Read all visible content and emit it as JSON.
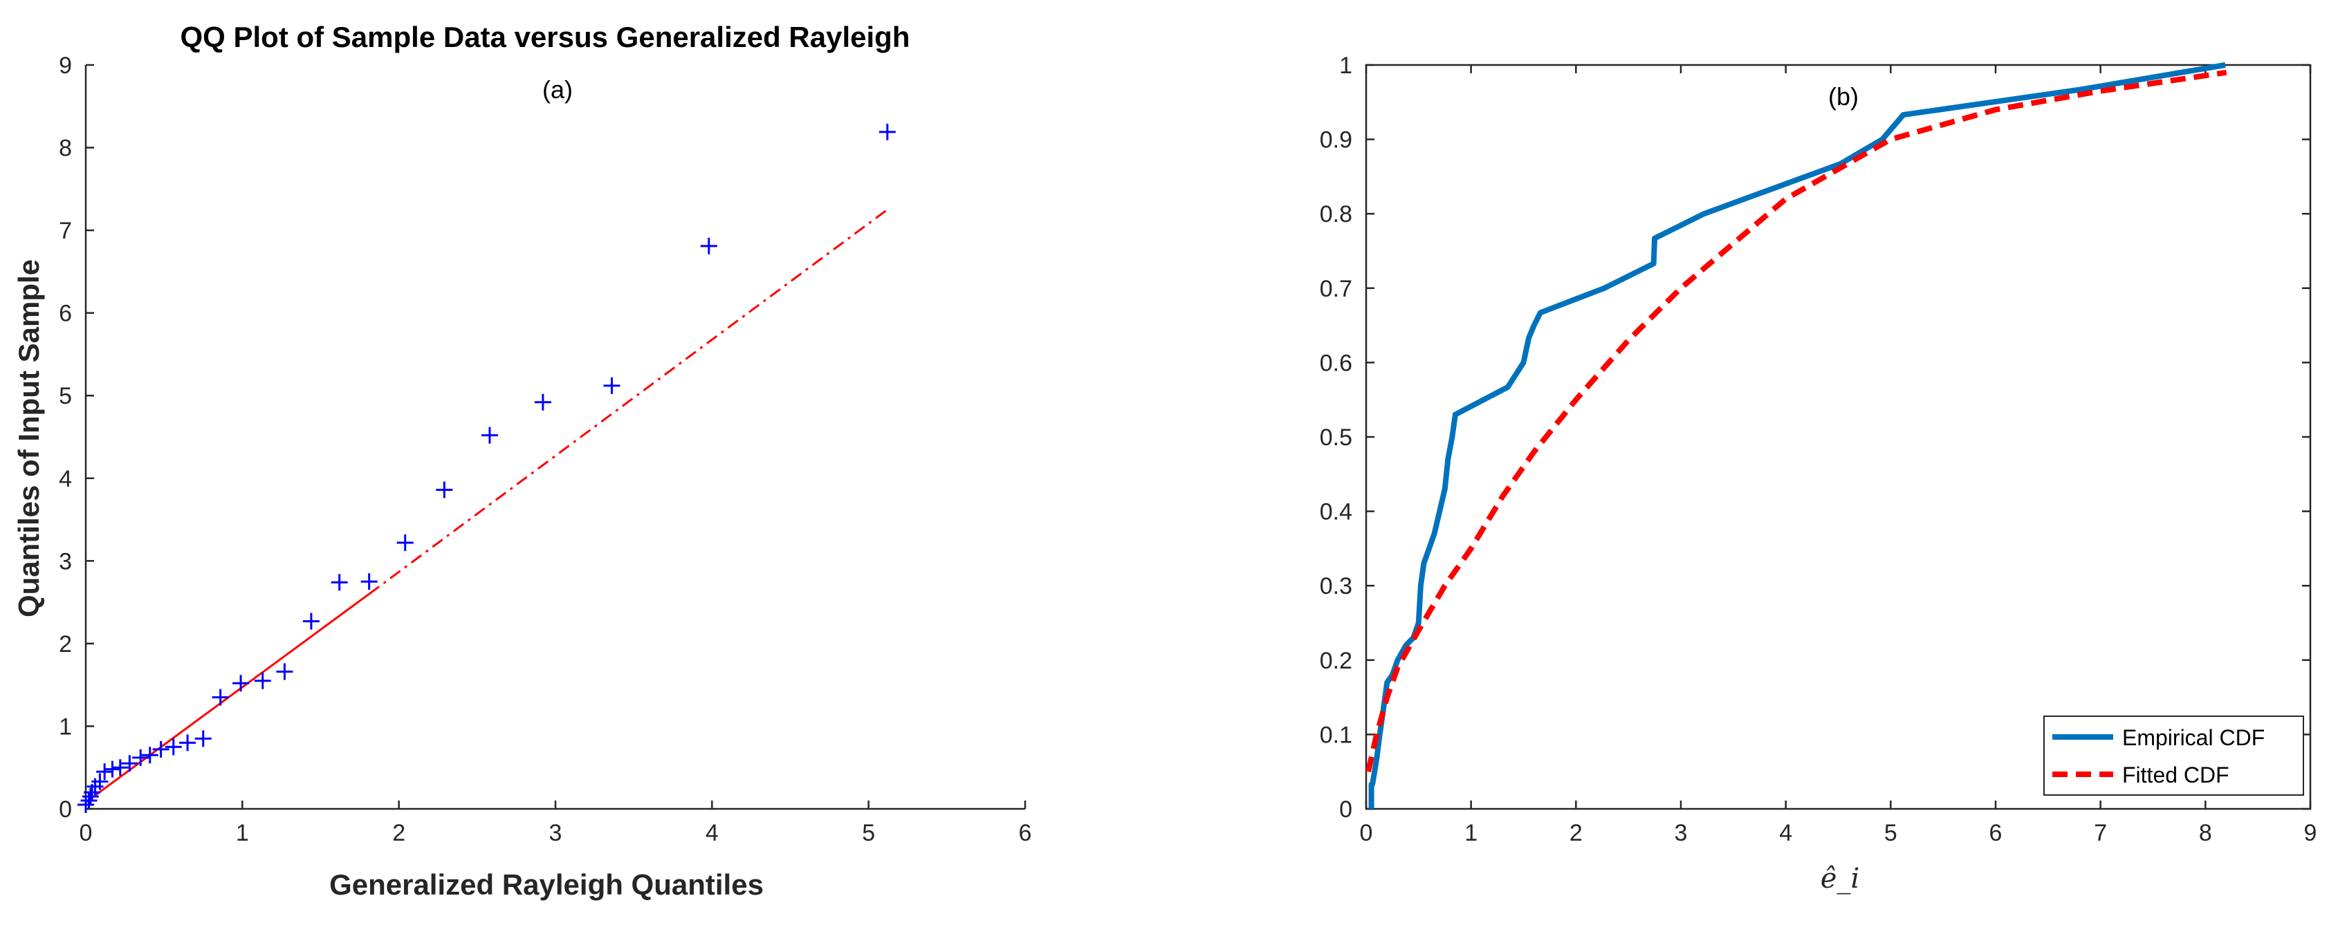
{
  "chart_data": [
    {
      "type": "scatter",
      "title": "QQ Plot of Sample Data versus Generalized Rayleigh",
      "annotation": "(a)",
      "xlabel": "Generalized Rayleigh Quantiles",
      "ylabel": "Quantiles of Input Sample",
      "xlim": [
        0,
        6
      ],
      "ylim": [
        0,
        9
      ],
      "xticks": [
        "0",
        "1",
        "2",
        "3",
        "4",
        "5",
        "6"
      ],
      "yticks": [
        "0",
        "1",
        "2",
        "3",
        "4",
        "5",
        "6",
        "7",
        "8",
        "9"
      ],
      "marker": "+",
      "marker_color": "#0000ff",
      "points": [
        [
          0.0,
          0.05
        ],
        [
          0.02,
          0.1
        ],
        [
          0.03,
          0.15
        ],
        [
          0.04,
          0.2
        ],
        [
          0.06,
          0.27
        ],
        [
          0.09,
          0.33
        ],
        [
          0.12,
          0.45
        ],
        [
          0.17,
          0.48
        ],
        [
          0.22,
          0.5
        ],
        [
          0.28,
          0.55
        ],
        [
          0.35,
          0.62
        ],
        [
          0.41,
          0.65
        ],
        [
          0.48,
          0.72
        ],
        [
          0.56,
          0.75
        ],
        [
          0.65,
          0.8
        ],
        [
          0.75,
          0.85
        ],
        [
          0.86,
          1.35
        ],
        [
          0.99,
          1.52
        ],
        [
          1.13,
          1.55
        ],
        [
          1.27,
          1.66
        ],
        [
          1.44,
          2.27
        ],
        [
          1.62,
          2.74
        ],
        [
          1.81,
          2.75
        ],
        [
          2.04,
          3.22
        ],
        [
          2.29,
          3.86
        ],
        [
          2.58,
          4.52
        ],
        [
          2.92,
          4.92
        ],
        [
          3.36,
          5.12
        ],
        [
          3.98,
          6.81
        ],
        [
          5.12,
          8.19
        ]
      ],
      "reference_line": {
        "color": "#ff0000",
        "solid": [
          [
            0.0,
            0.08
          ],
          [
            1.81,
            2.6
          ]
        ],
        "dashdot": [
          [
            1.81,
            2.6
          ],
          [
            5.12,
            7.25
          ]
        ]
      }
    },
    {
      "type": "line",
      "annotation": "(b)",
      "xlabel": "ê_i",
      "ylabel": "",
      "xlim": [
        0,
        9
      ],
      "ylim": [
        0,
        1
      ],
      "xticks": [
        "0",
        "1",
        "2",
        "3",
        "4",
        "5",
        "6",
        "7",
        "8",
        "9"
      ],
      "yticks": [
        "0",
        "0.1",
        "0.2",
        "0.3",
        "0.4",
        "0.5",
        "0.6",
        "0.7",
        "0.8",
        "0.9",
        "1"
      ],
      "legend_position": "bottom-right",
      "series": [
        {
          "name": "Empirical CDF",
          "color": "#0072bd",
          "style": "solid",
          "x": [
            0.05,
            0.05,
            0.06,
            0.1,
            0.13,
            0.16,
            0.2,
            0.25,
            0.3,
            0.38,
            0.45,
            0.5,
            0.52,
            0.55,
            0.6,
            0.65,
            0.7,
            0.75,
            0.78,
            0.82,
            0.85,
            1.35,
            1.5,
            1.55,
            1.6,
            1.66,
            2.27,
            2.74,
            2.75,
            3.22,
            3.86,
            4.52,
            4.92,
            5.12,
            6.81,
            8.19
          ],
          "y": [
            0.0,
            0.033,
            0.033,
            0.067,
            0.1,
            0.13,
            0.17,
            0.18,
            0.2,
            0.22,
            0.23,
            0.25,
            0.3,
            0.33,
            0.35,
            0.37,
            0.4,
            0.43,
            0.47,
            0.5,
            0.53,
            0.567,
            0.6,
            0.633,
            0.65,
            0.667,
            0.7,
            0.733,
            0.767,
            0.8,
            0.833,
            0.867,
            0.9,
            0.933,
            0.967,
            1.0
          ]
        },
        {
          "name": "Fitted CDF",
          "color": "#ff0000",
          "style": "dashed",
          "x": [
            0.02,
            0.1,
            0.2,
            0.3,
            0.5,
            0.75,
            1.0,
            1.3,
            1.6,
            2.0,
            2.5,
            3.0,
            3.5,
            4.0,
            4.5,
            5.0,
            6.0,
            7.0,
            8.2
          ],
          "y": [
            0.05,
            0.1,
            0.15,
            0.19,
            0.24,
            0.3,
            0.35,
            0.42,
            0.48,
            0.55,
            0.63,
            0.7,
            0.76,
            0.82,
            0.86,
            0.9,
            0.94,
            0.965,
            0.99
          ]
        }
      ]
    }
  ]
}
